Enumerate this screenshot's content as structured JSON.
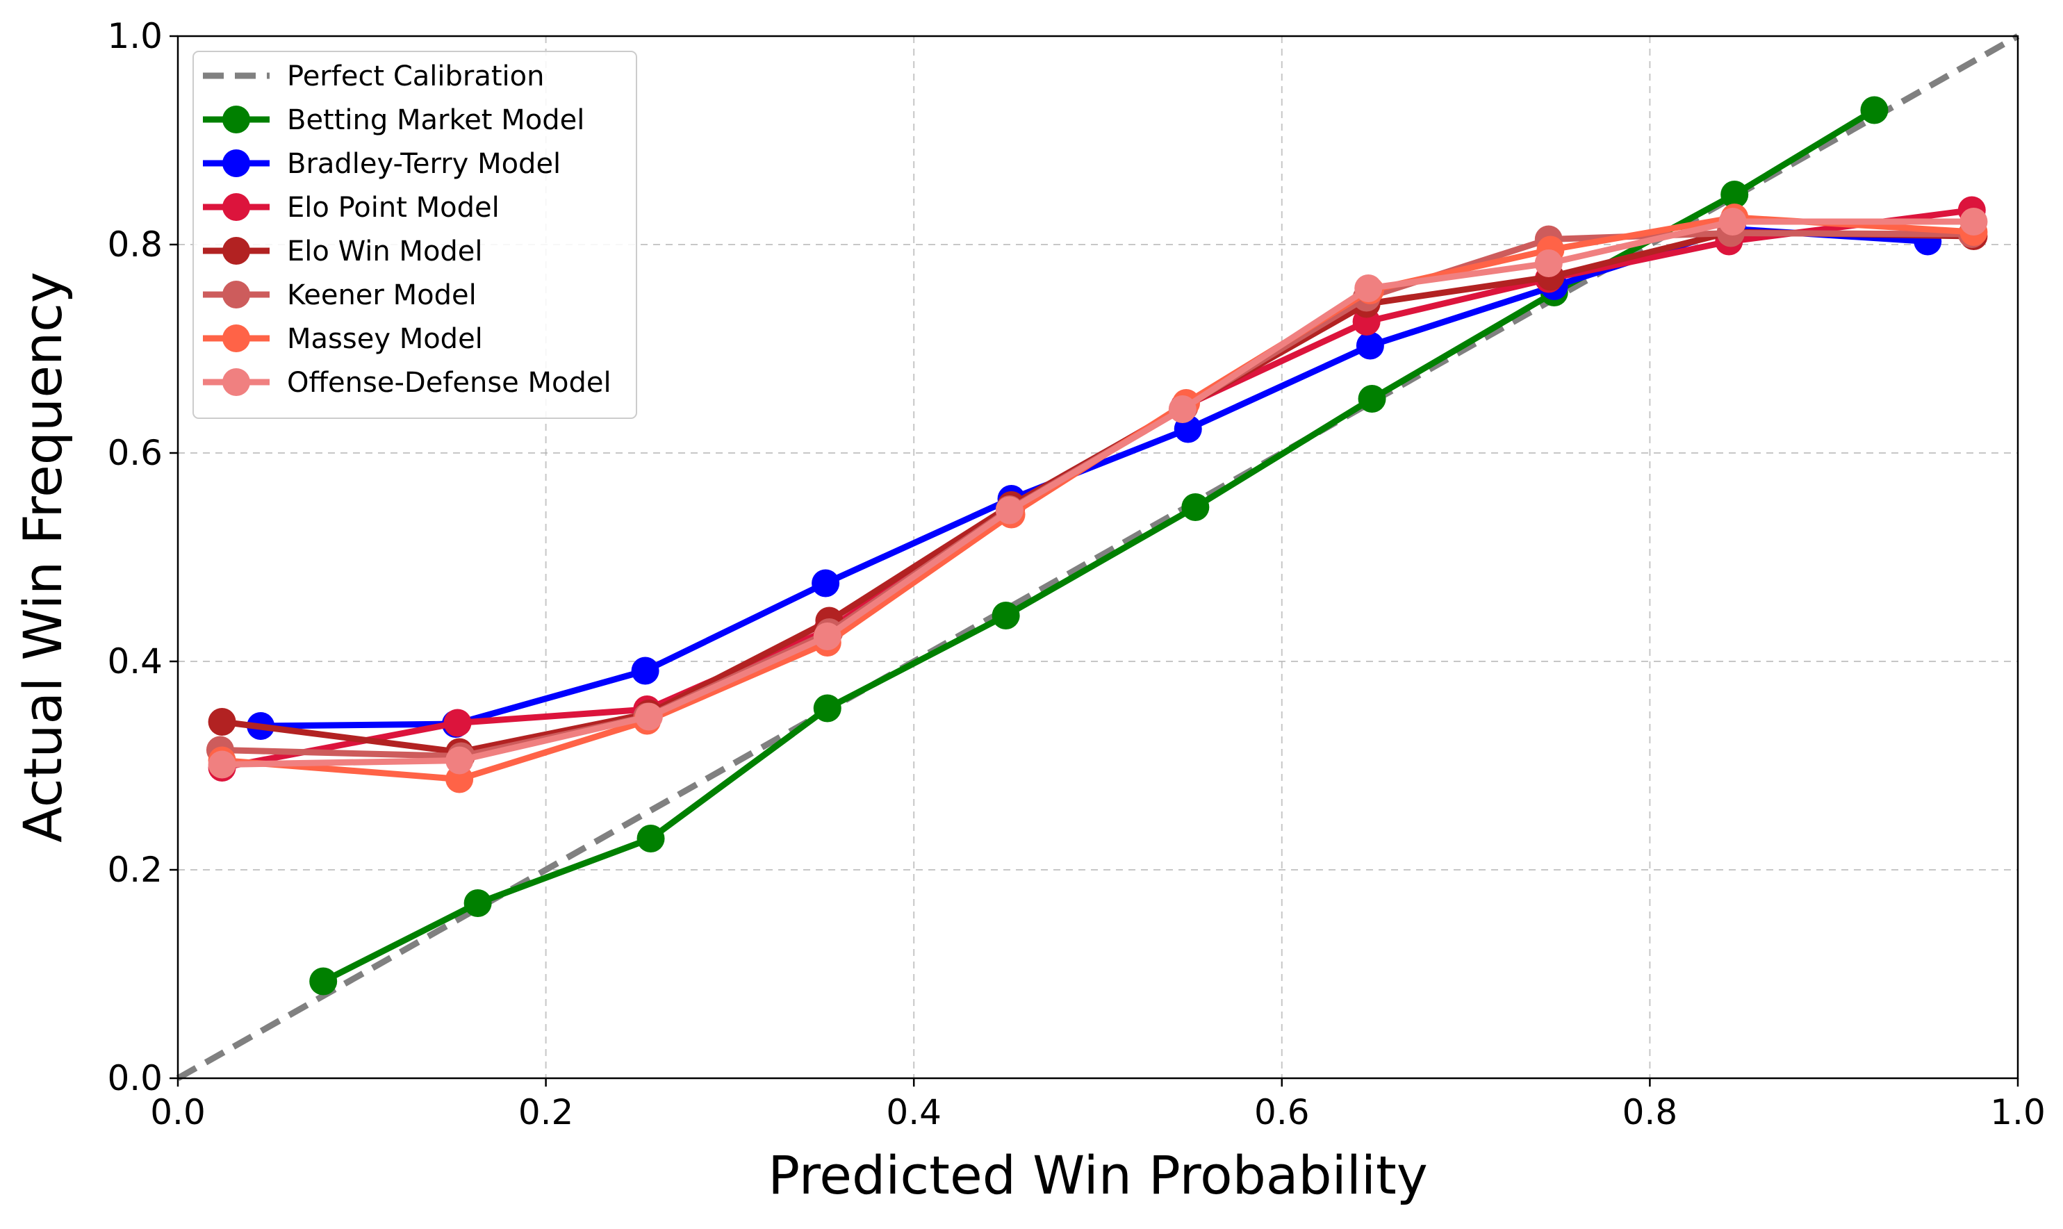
{
  "chart_data": {
    "type": "line",
    "title": "",
    "xlabel": "Predicted Win Probability",
    "ylabel": "Actual Win Frequency",
    "xlim": [
      0.0,
      1.0
    ],
    "ylim": [
      0.0,
      1.0
    ],
    "xticks": [
      "0.0",
      "0.2",
      "0.4",
      "0.6",
      "0.8",
      "1.0"
    ],
    "yticks": [
      "0.0",
      "0.2",
      "0.4",
      "0.6",
      "0.8",
      "1.0"
    ],
    "grid": true,
    "legend_position": "upper-left",
    "reference_line": {
      "name": "Perfect Calibration",
      "x": [
        0.0,
        1.0
      ],
      "y": [
        0.0,
        1.0
      ],
      "color": "#808080",
      "style": "dashed"
    },
    "series": [
      {
        "name": "Betting Market Model",
        "color": "#008000",
        "x": [
          0.079,
          0.163,
          0.257,
          0.353,
          0.45,
          0.553,
          0.649,
          0.748,
          0.846,
          0.922
        ],
        "y": [
          0.093,
          0.168,
          0.23,
          0.355,
          0.444,
          0.548,
          0.652,
          0.754,
          0.848,
          0.929
        ]
      },
      {
        "name": "Bradley-Terry Model",
        "color": "#0000ff",
        "x": [
          0.045,
          0.151,
          0.254,
          0.352,
          0.453,
          0.549,
          0.648,
          0.748,
          0.845,
          0.951
        ],
        "y": [
          0.338,
          0.34,
          0.391,
          0.475,
          0.556,
          0.623,
          0.703,
          0.76,
          0.815,
          0.803
        ]
      },
      {
        "name": "Elo Point Model",
        "color": "#dc143c",
        "x": [
          0.024,
          0.152,
          0.255,
          0.353,
          0.453,
          0.547,
          0.646,
          0.745,
          0.843,
          0.975
        ],
        "y": [
          0.298,
          0.341,
          0.354,
          0.43,
          0.548,
          0.645,
          0.726,
          0.767,
          0.803,
          0.833
        ]
      },
      {
        "name": "Elo Win Model",
        "color": "#b22222",
        "x": [
          0.024,
          0.153,
          0.256,
          0.354,
          0.453,
          0.547,
          0.646,
          0.746,
          0.844,
          0.976
        ],
        "y": [
          0.342,
          0.313,
          0.35,
          0.439,
          0.55,
          0.644,
          0.743,
          0.769,
          0.812,
          0.808
        ]
      },
      {
        "name": "Keener Model",
        "color": "#cd5c5c",
        "x": [
          0.023,
          0.154,
          0.255,
          0.354,
          0.452,
          0.547,
          0.646,
          0.745,
          0.844,
          0.975
        ],
        "y": [
          0.315,
          0.309,
          0.347,
          0.428,
          0.546,
          0.644,
          0.749,
          0.805,
          0.811,
          0.81
        ]
      },
      {
        "name": "Massey Model",
        "color": "#ff6347",
        "x": [
          0.024,
          0.153,
          0.255,
          0.353,
          0.453,
          0.548,
          0.648,
          0.746,
          0.846,
          0.976
        ],
        "y": [
          0.305,
          0.287,
          0.343,
          0.418,
          0.541,
          0.648,
          0.756,
          0.795,
          0.826,
          0.812
        ]
      },
      {
        "name": "Offense-Defense Model",
        "color": "#f08080",
        "x": [
          0.024,
          0.153,
          0.256,
          0.353,
          0.452,
          0.546,
          0.647,
          0.745,
          0.845,
          0.976
        ],
        "y": [
          0.301,
          0.305,
          0.347,
          0.424,
          0.545,
          0.642,
          0.758,
          0.782,
          0.822,
          0.822
        ]
      }
    ]
  }
}
